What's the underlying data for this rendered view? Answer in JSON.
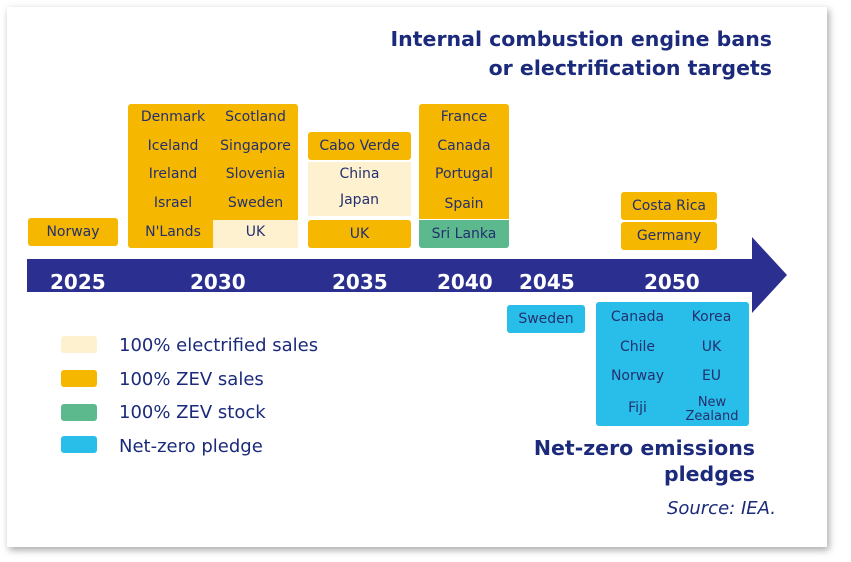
{
  "title": {
    "line1": "Internal combustion engine bans",
    "line2": "or electrification targets"
  },
  "subtitle": "Net-zero emissions pledges",
  "source": "Source: IEA.",
  "colors": {
    "electrified": "#fdf1d0",
    "zev_sales": "#f5b700",
    "zev_stock": "#5cb98e",
    "net_zero": "#29bdea",
    "arrow": "#2b3090"
  },
  "years": [
    "2025",
    "2030",
    "2035",
    "2040",
    "2045",
    "2050"
  ],
  "targets": {
    "y2025": [
      "Norway"
    ],
    "y2030_col1": [
      "Denmark",
      "Iceland",
      "Ireland",
      "Israel",
      "N'Lands"
    ],
    "y2030_col2": [
      "Scotland",
      "Singapore",
      "Slovenia",
      "Sweden",
      "UK"
    ],
    "y2035_top": "Cabo Verde",
    "y2035_electrified": [
      "China",
      "Japan"
    ],
    "y2035_bottom": "UK",
    "y2040": [
      "France",
      "Canada",
      "Portugal",
      "Spain",
      "Sri Lanka"
    ],
    "y2050": [
      "Costa Rica",
      "Germany"
    ]
  },
  "pledges": {
    "y2045": "Sweden",
    "y2050_col1": [
      "Canada",
      "Chile",
      "Norway",
      "Fiji"
    ],
    "y2050_col2": [
      "Korea",
      "UK",
      "EU",
      "New Zealand"
    ]
  },
  "legend": [
    {
      "label": "100% electrified sales",
      "color": "#fdf1d0"
    },
    {
      "label": "100% ZEV sales",
      "color": "#f5b700"
    },
    {
      "label": "100% ZEV stock",
      "color": "#5cb98e"
    },
    {
      "label": "Net-zero pledge",
      "color": "#29bdea"
    }
  ]
}
